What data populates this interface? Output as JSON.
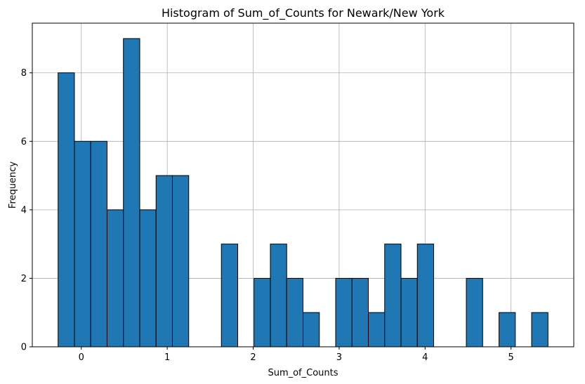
{
  "chart_data": {
    "type": "bar",
    "title": "Histogram of Sum_of_Counts for Newark/New York",
    "xlabel": "Sum_of_Counts",
    "ylabel": "Frequency",
    "bins": [
      {
        "x0": -0.27,
        "x1": -0.08,
        "count": 8
      },
      {
        "x0": -0.08,
        "x1": 0.11,
        "count": 6
      },
      {
        "x0": 0.11,
        "x1": 0.3,
        "count": 6
      },
      {
        "x0": 0.3,
        "x1": 0.49,
        "count": 4
      },
      {
        "x0": 0.49,
        "x1": 0.68,
        "count": 9
      },
      {
        "x0": 0.68,
        "x1": 0.87,
        "count": 4
      },
      {
        "x0": 0.87,
        "x1": 1.06,
        "count": 5
      },
      {
        "x0": 1.06,
        "x1": 1.25,
        "count": 5
      },
      {
        "x0": 1.25,
        "x1": 1.44,
        "count": 0
      },
      {
        "x0": 1.44,
        "x1": 1.63,
        "count": 0
      },
      {
        "x0": 1.63,
        "x1": 1.82,
        "count": 3
      },
      {
        "x0": 1.82,
        "x1": 2.01,
        "count": 0
      },
      {
        "x0": 2.01,
        "x1": 2.2,
        "count": 2
      },
      {
        "x0": 2.2,
        "x1": 2.39,
        "count": 3
      },
      {
        "x0": 2.39,
        "x1": 2.58,
        "count": 2
      },
      {
        "x0": 2.58,
        "x1": 2.77,
        "count": 1
      },
      {
        "x0": 2.77,
        "x1": 2.96,
        "count": 0
      },
      {
        "x0": 2.96,
        "x1": 3.15,
        "count": 2
      },
      {
        "x0": 3.15,
        "x1": 3.34,
        "count": 2
      },
      {
        "x0": 3.34,
        "x1": 3.53,
        "count": 1
      },
      {
        "x0": 3.53,
        "x1": 3.72,
        "count": 3
      },
      {
        "x0": 3.72,
        "x1": 3.91,
        "count": 2
      },
      {
        "x0": 3.91,
        "x1": 4.1,
        "count": 3
      },
      {
        "x0": 4.1,
        "x1": 4.29,
        "count": 0
      },
      {
        "x0": 4.29,
        "x1": 4.48,
        "count": 0
      },
      {
        "x0": 4.48,
        "x1": 4.67,
        "count": 2
      },
      {
        "x0": 4.67,
        "x1": 4.86,
        "count": 0
      },
      {
        "x0": 4.86,
        "x1": 5.05,
        "count": 1
      },
      {
        "x0": 5.05,
        "x1": 5.24,
        "count": 0
      },
      {
        "x0": 5.24,
        "x1": 5.43,
        "count": 1
      }
    ],
    "xlim": [
      -0.57,
      5.73
    ],
    "ylim": [
      0,
      9.45
    ],
    "xticks": [
      0,
      1,
      2,
      3,
      4,
      5
    ],
    "yticks": [
      0,
      2,
      4,
      6,
      8
    ],
    "grid": true,
    "legend": "none",
    "bar_color": "#1f77b4",
    "edge_color": "#000000"
  }
}
